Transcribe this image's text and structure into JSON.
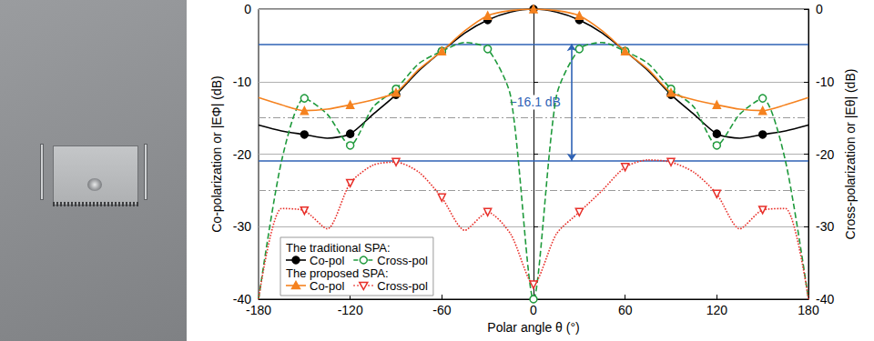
{
  "chart_data": {
    "type": "line",
    "xlabel": "Polar angle θ (°)",
    "ylabel": "Co-polarization or |EΦ| (dB)",
    "y2label": "Cross-polarization or |Eθ| (dB)",
    "xlim": [
      -180,
      180
    ],
    "xticks": [
      -180,
      -120,
      -60,
      0,
      60,
      120,
      180
    ],
    "ylim": [
      -40,
      0
    ],
    "yticks": [
      -40,
      -30,
      -20,
      -10,
      0
    ],
    "y2lim": [
      -40,
      0
    ],
    "y2ticks": [
      -40,
      -30,
      -20,
      -10,
      0
    ],
    "grid": true,
    "legend": "lower left",
    "x": [
      -180,
      -165,
      -150,
      -135,
      -120,
      -105,
      -90,
      -75,
      -60,
      -45,
      -30,
      -15,
      0,
      15,
      30,
      45,
      60,
      75,
      90,
      105,
      120,
      135,
      150,
      165,
      180
    ],
    "series": [
      {
        "name": "Co-pol",
        "group": "The traditional SPA:",
        "color": "#000000",
        "line_style": "solid",
        "marker": "circle",
        "values": [
          -16.0,
          -16.8,
          -17.3,
          -17.8,
          -17.2,
          -14.5,
          -11.8,
          -8.5,
          -5.8,
          -3.3,
          -1.5,
          -0.4,
          0,
          -0.4,
          -1.5,
          -3.3,
          -5.8,
          -8.5,
          -11.8,
          -14.5,
          -17.2,
          -17.8,
          -17.3,
          -16.8,
          -16.0
        ]
      },
      {
        "name": "Cross-pol",
        "group": "The traditional SPA:",
        "color": "#1f9a3c",
        "line_style": "dashed",
        "marker": "open-circle",
        "axis": "y2",
        "values": [
          -40,
          -21,
          -12.3,
          -14.5,
          -18.8,
          -13.5,
          -11.0,
          -7.5,
          -5.8,
          -4.6,
          -5.5,
          -12,
          -40,
          -12,
          -5.5,
          -4.6,
          -5.8,
          -7.5,
          -11.0,
          -13.5,
          -18.8,
          -14.5,
          -12.3,
          -21,
          -40
        ]
      },
      {
        "name": "Co-pol",
        "group": "The proposed SPA:",
        "color": "#f5821f",
        "line_style": "solid",
        "marker": "triangle",
        "values": [
          -12.2,
          -13.2,
          -14.0,
          -13.8,
          -13.2,
          -12.5,
          -11.5,
          -8.3,
          -5.8,
          -3.0,
          -0.9,
          -0.2,
          0,
          -0.2,
          -0.9,
          -3.0,
          -5.8,
          -8.3,
          -11.5,
          -12.5,
          -13.2,
          -13.8,
          -14.0,
          -13.2,
          -12.2
        ]
      },
      {
        "name": "Cross-pol",
        "group": "The proposed SPA:",
        "color": "#e8302a",
        "line_style": "dotted",
        "marker": "open-triangle-down",
        "axis": "y2",
        "values": [
          -40,
          -27.5,
          -27.8,
          -30.3,
          -24.0,
          -21.5,
          -21.1,
          -22.5,
          -26.0,
          -30.5,
          -28.0,
          -31.0,
          -38.0,
          -31.0,
          -28.0,
          -25.0,
          -21.8,
          -20.8,
          -21.1,
          -22.5,
          -25.5,
          -30.3,
          -27.7,
          -27.5,
          -40
        ]
      }
    ],
    "annotations": [
      {
        "text": "−16.1 dB",
        "x": 25,
        "y_from": -4.8,
        "y_to": -20.9,
        "color": "#2e62b5"
      }
    ],
    "ref_lines": [
      -15,
      -25
    ]
  }
}
